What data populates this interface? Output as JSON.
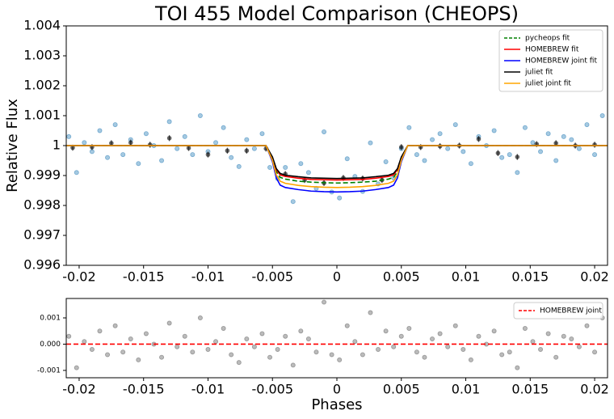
{
  "chart_data": [
    {
      "type": "scatter",
      "title": "TOI 455 Model Comparison (CHEOPS)",
      "ylabel": "Relative Flux",
      "xlim": [
        -0.021,
        0.021
      ],
      "ylim": [
        0.996,
        1.004
      ],
      "xticks": [
        -0.02,
        -0.015,
        -0.01,
        -0.005,
        0,
        0.005,
        0.01,
        0.015,
        0.02
      ],
      "yticks": [
        0.996,
        0.997,
        0.998,
        0.999,
        1,
        1.001,
        1.002,
        1.003,
        1.004
      ],
      "legend": "upper right",
      "points": {
        "color": "#1f77b4",
        "x": [
          -0.0208,
          -0.0202,
          -0.0196,
          -0.019,
          -0.0184,
          -0.0178,
          -0.0172,
          -0.0166,
          -0.016,
          -0.0154,
          -0.0148,
          -0.0142,
          -0.0136,
          -0.013,
          -0.0124,
          -0.0118,
          -0.0112,
          -0.0106,
          -0.01,
          -0.0094,
          -0.0088,
          -0.0082,
          -0.0076,
          -0.007,
          -0.0064,
          -0.0058,
          -0.0052,
          -0.0046,
          -0.004,
          -0.0034,
          -0.0028,
          -0.0022,
          -0.0016,
          -0.001,
          -0.0004,
          0.0002,
          0.0008,
          0.0014,
          0.002,
          0.0026,
          0.0032,
          0.0038,
          0.0044,
          0.005,
          0.0056,
          0.0062,
          0.0068,
          0.0074,
          0.008,
          0.0086,
          0.0092,
          0.0098,
          0.0104,
          0.011,
          0.0116,
          0.0122,
          0.0128,
          0.0134,
          0.014,
          0.0146,
          0.0152,
          0.0158,
          0.0164,
          0.017,
          0.0176,
          0.0182,
          0.0188,
          0.0194,
          0.02,
          0.0206
        ],
        "y": [
          1.0003,
          0.9991,
          1.0001,
          0.9998,
          1.0005,
          0.9996,
          1.0007,
          0.9997,
          1.0002,
          0.9994,
          1.0004,
          1.0,
          0.9995,
          1.0008,
          0.9999,
          1.0003,
          0.9997,
          1.001,
          0.9998,
          1.0001,
          1.0006,
          0.9996,
          0.9993,
          1.0002,
          0.9999,
          1.0004,
          0.99927,
          0.9989,
          0.99927,
          0.99813,
          0.9994,
          0.9991,
          0.99857,
          1.00046,
          0.99845,
          0.99825,
          0.99956,
          0.99897,
          0.99847,
          1.00009,
          0.99872,
          0.99946,
          0.99892,
          0.9999,
          1.0006,
          0.9997,
          0.9995,
          1.0002,
          1.0004,
          0.9999,
          1.0007,
          0.9998,
          0.9994,
          1.0003,
          1.0,
          1.0005,
          0.9996,
          0.9997,
          0.9991,
          1.0006,
          1.0001,
          0.9998,
          1.0004,
          0.9995,
          1.0003,
          1.0002,
          0.9999,
          1.0007,
          0.9997,
          1.001
        ]
      },
      "binned": {
        "color": "#000000",
        "x": [
          -0.0205,
          -0.019,
          -0.0175,
          -0.016,
          -0.0145,
          -0.013,
          -0.0115,
          -0.01,
          -0.0085,
          -0.007,
          -0.0055,
          -0.004,
          -0.0025,
          -0.001,
          0.0005,
          0.002,
          0.0035,
          0.005,
          0.0065,
          0.008,
          0.0095,
          0.011,
          0.0125,
          0.014,
          0.0155,
          0.017,
          0.0185,
          0.02
        ],
        "y": [
          0.99993,
          0.99995,
          1.00008,
          1.0001,
          1.00003,
          1.00025,
          0.99992,
          0.9997,
          0.99983,
          0.99983,
          0.9999,
          0.99905,
          0.99885,
          0.99875,
          0.99892,
          0.9989,
          0.99885,
          0.99995,
          0.99995,
          0.99998,
          1.0,
          1.00022,
          0.99975,
          0.99962,
          1.00005,
          1.00008,
          1.0,
          1.00003
        ],
        "yerr": [
          0.0001,
          0.0001,
          0.0001,
          0.0001,
          0.0001,
          0.0001,
          0.0001,
          0.0001,
          0.0001,
          0.0001,
          0.0001,
          0.0001,
          0.0001,
          0.0001,
          0.0001,
          0.0001,
          0.0001,
          0.0001,
          0.0001,
          0.0001,
          0.0001,
          0.0001,
          0.0001,
          0.0001,
          0.0001,
          0.0001,
          0.0001,
          0.0001
        ]
      },
      "series": [
        {
          "name": "pycheops fit",
          "color": "#008000",
          "dash": "dashed",
          "x": [
            -0.021,
            -0.0055,
            -0.005,
            -0.0047,
            -0.0044,
            -0.004,
            -0.003,
            -0.002,
            -0.001,
            0,
            0.001,
            0.002,
            0.003,
            0.004,
            0.0044,
            0.0047,
            0.005,
            0.0055,
            0.021
          ],
          "values": [
            1,
            1,
            0.99956,
            0.99913,
            0.99894,
            0.99888,
            0.99881,
            0.99878,
            0.99876,
            0.99875,
            0.99876,
            0.99878,
            0.99881,
            0.99888,
            0.99894,
            0.99913,
            0.99956,
            1,
            1
          ]
        },
        {
          "name": "HOMEBREW fit",
          "color": "#ff0000",
          "dash": "solid",
          "x": [
            -0.021,
            -0.0055,
            -0.005,
            -0.0047,
            -0.0044,
            -0.004,
            -0.003,
            -0.002,
            -0.001,
            0,
            0.001,
            0.002,
            0.003,
            0.004,
            0.0044,
            0.0047,
            0.005,
            0.0055,
            0.021
          ],
          "values": [
            1,
            1,
            0.9996,
            0.9992,
            0.99902,
            0.99897,
            0.99891,
            0.99887,
            0.99886,
            0.99885,
            0.99886,
            0.99887,
            0.99891,
            0.99897,
            0.99902,
            0.9992,
            0.9996,
            1,
            1
          ]
        },
        {
          "name": "HOMEBREW joint fit",
          "color": "#0000ff",
          "dash": "solid",
          "x": [
            -0.021,
            -0.0055,
            -0.005,
            -0.0047,
            -0.0044,
            -0.004,
            -0.003,
            -0.002,
            -0.001,
            0,
            0.001,
            0.002,
            0.003,
            0.004,
            0.0044,
            0.0047,
            0.005,
            0.0055,
            0.021
          ],
          "values": [
            1,
            1,
            0.99946,
            0.99892,
            0.99868,
            0.9986,
            0.99853,
            0.99848,
            0.99846,
            0.99845,
            0.99846,
            0.99848,
            0.99853,
            0.9986,
            0.99868,
            0.99892,
            0.99946,
            1,
            1
          ]
        },
        {
          "name": "juliet fit",
          "color": "#000000",
          "dash": "solid",
          "x": [
            -0.021,
            -0.0055,
            -0.005,
            -0.0047,
            -0.0044,
            -0.004,
            -0.003,
            -0.002,
            -0.001,
            0,
            0.001,
            0.002,
            0.003,
            0.004,
            0.0044,
            0.0047,
            0.005,
            0.0055,
            0.021
          ],
          "values": [
            1,
            1,
            0.99962,
            0.99923,
            0.99907,
            0.99901,
            0.99896,
            0.99892,
            0.99891,
            0.9989,
            0.99891,
            0.99892,
            0.99896,
            0.99901,
            0.99907,
            0.99923,
            0.99962,
            1,
            1
          ]
        },
        {
          "name": "juliet joint fit",
          "color": "#ffa500",
          "dash": "solid",
          "x": [
            -0.021,
            -0.0055,
            -0.005,
            -0.0047,
            -0.0044,
            -0.004,
            -0.003,
            -0.002,
            -0.001,
            0,
            0.001,
            0.002,
            0.003,
            0.004,
            0.0044,
            0.0047,
            0.005,
            0.0055,
            0.021
          ],
          "values": [
            1,
            1,
            0.99951,
            0.99902,
            0.99881,
            0.99874,
            0.99867,
            0.99863,
            0.99861,
            0.9986,
            0.99861,
            0.99863,
            0.99867,
            0.99874,
            0.99881,
            0.99902,
            0.99951,
            1,
            1
          ]
        }
      ]
    },
    {
      "type": "scatter",
      "xlabel": "Phases",
      "xlim": [
        -0.021,
        0.021
      ],
      "ylim": [
        -0.00128,
        0.00174
      ],
      "xticks": [
        -0.02,
        -0.015,
        -0.01,
        -0.005,
        0,
        0.005,
        0.01,
        0.015,
        0.02
      ],
      "yticks": [
        -0.001,
        {
          "value": 0,
          "label": "0.000"
        },
        0.001
      ],
      "legend": "upper right",
      "points": {
        "color": "#555555",
        "x": [
          -0.0208,
          -0.0202,
          -0.0196,
          -0.019,
          -0.0184,
          -0.0178,
          -0.0172,
          -0.0166,
          -0.016,
          -0.0154,
          -0.0148,
          -0.0142,
          -0.0136,
          -0.013,
          -0.0124,
          -0.0118,
          -0.0112,
          -0.0106,
          -0.01,
          -0.0094,
          -0.0088,
          -0.0082,
          -0.0076,
          -0.007,
          -0.0064,
          -0.0058,
          -0.0052,
          -0.0046,
          -0.004,
          -0.0034,
          -0.0028,
          -0.0022,
          -0.0016,
          -0.001,
          -0.0004,
          0.0002,
          0.0008,
          0.0014,
          0.002,
          0.0026,
          0.0032,
          0.0038,
          0.0044,
          0.005,
          0.0056,
          0.0062,
          0.0068,
          0.0074,
          0.008,
          0.0086,
          0.0092,
          0.0098,
          0.0104,
          0.011,
          0.0116,
          0.0122,
          0.0128,
          0.0134,
          0.014,
          0.0146,
          0.0152,
          0.0158,
          0.0164,
          0.017,
          0.0176,
          0.0182,
          0.0188,
          0.0194,
          0.02,
          0.0206
        ],
        "y": [
          0.0003,
          -0.0009,
          0.0001,
          -0.0002,
          0.0005,
          -0.0004,
          0.0007,
          -0.0003,
          0.0002,
          -0.0006,
          0.0004,
          0,
          -0.0005,
          0.0008,
          -0.0001,
          0.0003,
          -0.0003,
          0.001,
          -0.0002,
          0.0001,
          0.0006,
          -0.0004,
          -0.0007,
          0.0002,
          -0.0001,
          0.0004,
          -0.0005,
          -0.0002,
          0.0003,
          -0.0008,
          0.0005,
          0.0002,
          -0.0003,
          0.0016,
          -0.0004,
          -0.0006,
          0.0007,
          0.0001,
          -0.0004,
          0.0012,
          -0.0002,
          0.0005,
          -0.0001,
          0.0003,
          0.0006,
          -0.0003,
          -0.0005,
          0.0002,
          0.0004,
          -0.0001,
          0.0007,
          -0.0002,
          -0.0006,
          0.0003,
          0,
          0.0005,
          -0.0004,
          -0.0003,
          -0.0009,
          0.0006,
          0.0001,
          -0.0002,
          0.0004,
          -0.0005,
          0.0003,
          0.0002,
          -0.0001,
          0.0007,
          -0.0003,
          0.001
        ]
      },
      "series": [
        {
          "name": "HOMEBREW joint",
          "color": "#ff0000",
          "dash": "dashed",
          "x": [
            -0.021,
            0.021
          ],
          "values": [
            0,
            0
          ]
        }
      ]
    }
  ]
}
